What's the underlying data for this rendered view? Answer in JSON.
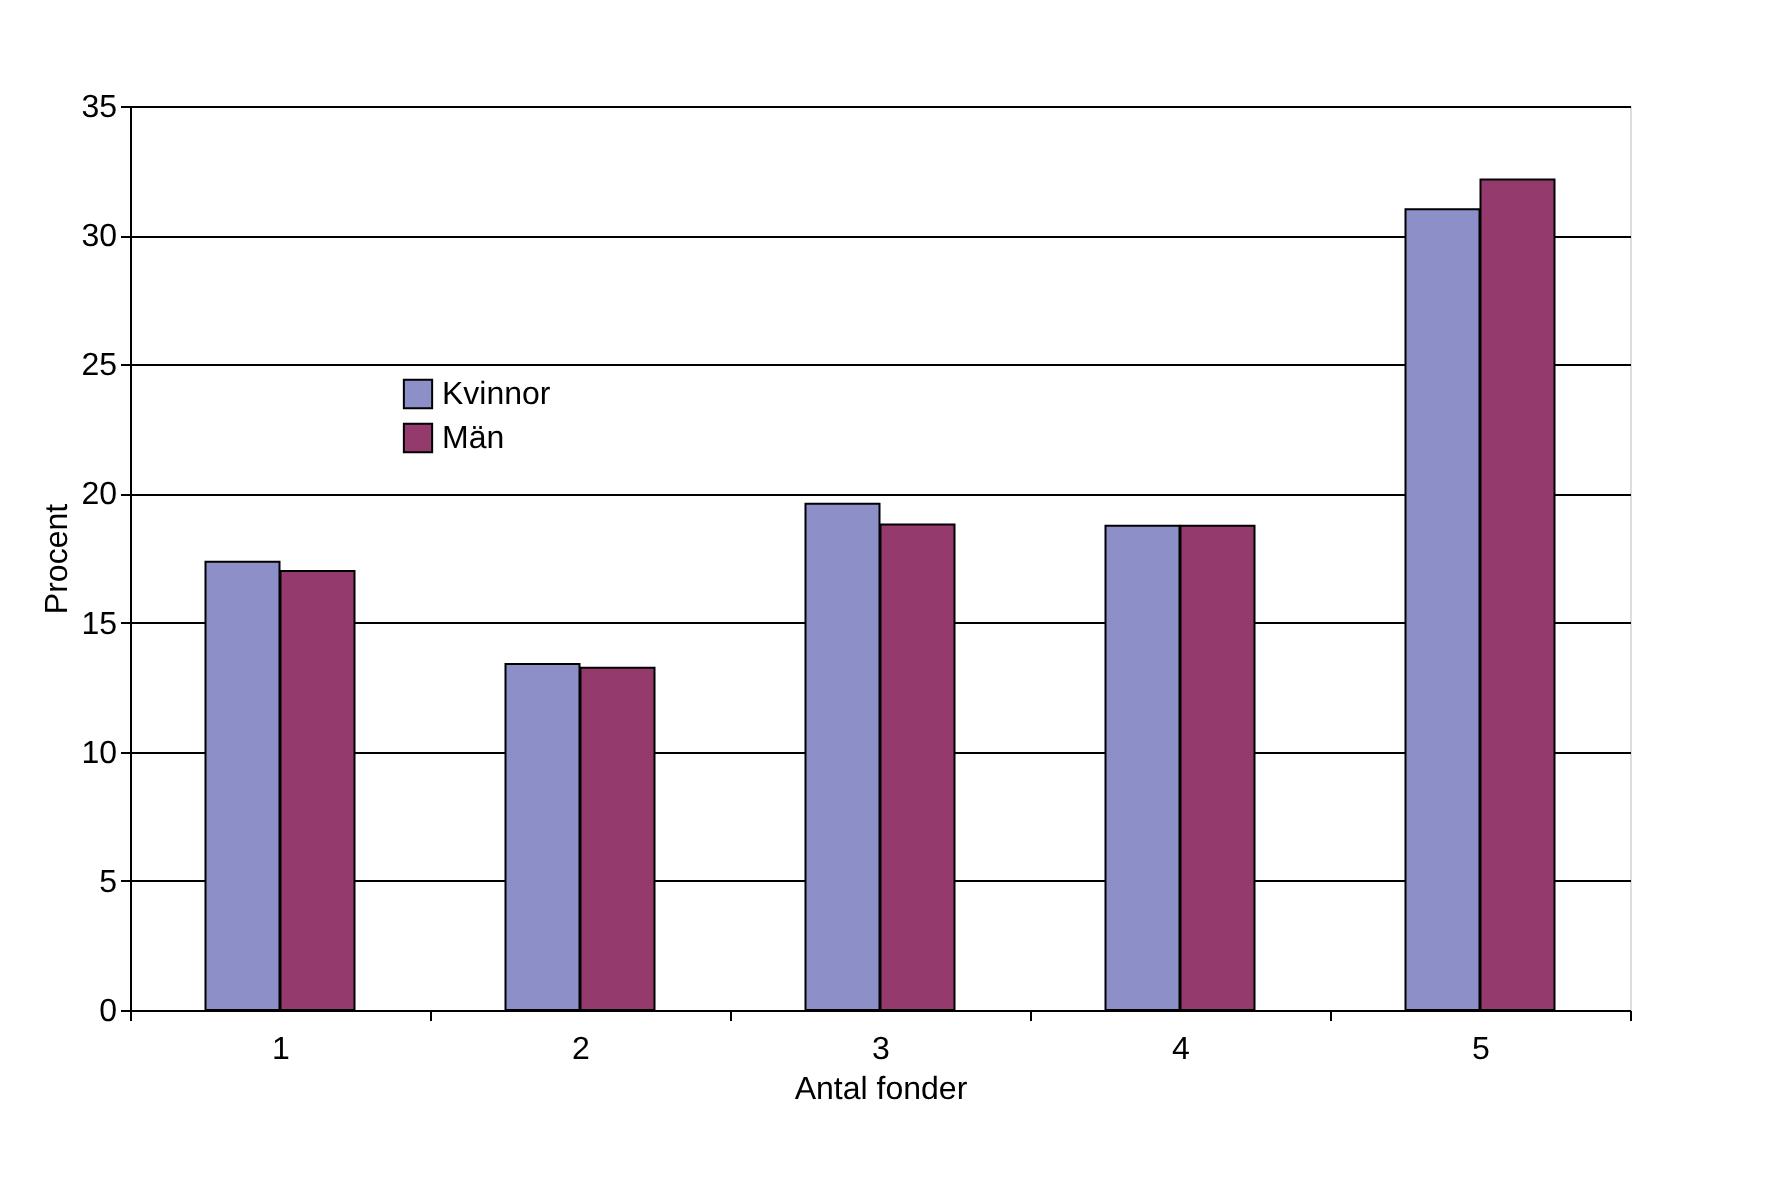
{
  "chart_data": {
    "type": "bar",
    "xlabel": "Antal fonder",
    "ylabel": "Procent",
    "categories": [
      "1",
      "2",
      "3",
      "4",
      "5"
    ],
    "series": [
      {
        "name": "Kvinnor",
        "color": "#8c8fc8",
        "values": [
          17.35,
          13.4,
          19.6,
          18.75,
          31.0
        ]
      },
      {
        "name": "Män",
        "color": "#953a6d",
        "values": [
          17.0,
          13.25,
          18.8,
          18.75,
          32.15
        ]
      }
    ],
    "ylim": [
      0,
      35
    ],
    "yticks": [
      0,
      5,
      10,
      15,
      20,
      25,
      30,
      35
    ],
    "grid": "y",
    "legend": "top left"
  }
}
